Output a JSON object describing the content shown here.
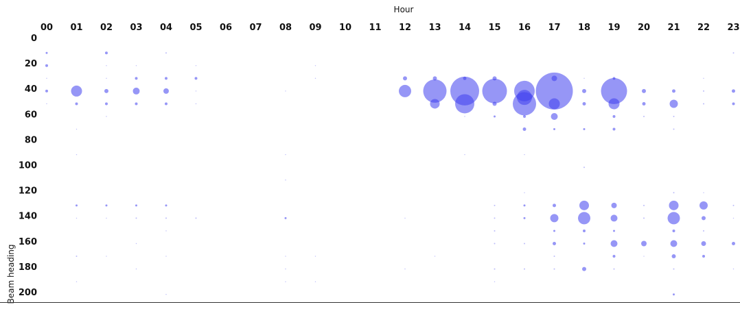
{
  "chart_data": {
    "type": "scatter",
    "subtype": "bubble",
    "title": "",
    "xlabel": "Hour",
    "ylabel": "Beam heading",
    "x_categories": [
      "00",
      "01",
      "02",
      "03",
      "04",
      "05",
      "06",
      "07",
      "08",
      "09",
      "10",
      "11",
      "12",
      "13",
      "14",
      "15",
      "16",
      "17",
      "18",
      "19",
      "20",
      "21",
      "22",
      "23"
    ],
    "y_ticks": [
      0,
      20,
      40,
      60,
      80,
      100,
      120,
      140,
      160,
      180,
      200
    ],
    "ylim": [
      0,
      200
    ],
    "y_inverted": true,
    "x_axis_position": "top",
    "grid": false,
    "legend": "none",
    "colors": {
      "bubble": "#4040ee",
      "text": "#111111",
      "axis": "#333333"
    },
    "points": [
      {
        "hour": "00",
        "heading": 12,
        "size": 3
      },
      {
        "hour": "00",
        "heading": 22,
        "size": 4
      },
      {
        "hour": "00",
        "heading": 32,
        "size": 1
      },
      {
        "hour": "00",
        "heading": 42,
        "size": 4
      },
      {
        "hour": "00",
        "heading": 52,
        "size": 1
      },
      {
        "hour": "01",
        "heading": 42,
        "size": 16
      },
      {
        "hour": "01",
        "heading": 52,
        "size": 4
      },
      {
        "hour": "01",
        "heading": 72,
        "size": 1
      },
      {
        "hour": "01",
        "heading": 92,
        "size": 1
      },
      {
        "hour": "01",
        "heading": 132,
        "size": 3
      },
      {
        "hour": "01",
        "heading": 142,
        "size": 1
      },
      {
        "hour": "01",
        "heading": 172,
        "size": 2
      },
      {
        "hour": "01",
        "heading": 192,
        "size": 1
      },
      {
        "hour": "02",
        "heading": 12,
        "size": 4
      },
      {
        "hour": "02",
        "heading": 22,
        "size": 1
      },
      {
        "hour": "02",
        "heading": 32,
        "size": 1
      },
      {
        "hour": "02",
        "heading": 42,
        "size": 6
      },
      {
        "hour": "02",
        "heading": 52,
        "size": 4
      },
      {
        "hour": "02",
        "heading": 62,
        "size": 1
      },
      {
        "hour": "02",
        "heading": 132,
        "size": 3
      },
      {
        "hour": "02",
        "heading": 142,
        "size": 1
      },
      {
        "hour": "02",
        "heading": 172,
        "size": 1
      },
      {
        "hour": "03",
        "heading": 22,
        "size": 1
      },
      {
        "hour": "03",
        "heading": 32,
        "size": 4
      },
      {
        "hour": "03",
        "heading": 42,
        "size": 10
      },
      {
        "hour": "03",
        "heading": 52,
        "size": 4
      },
      {
        "hour": "03",
        "heading": 132,
        "size": 3
      },
      {
        "hour": "03",
        "heading": 142,
        "size": 2
      },
      {
        "hour": "03",
        "heading": 162,
        "size": 1
      },
      {
        "hour": "03",
        "heading": 182,
        "size": 1
      },
      {
        "hour": "04",
        "heading": 12,
        "size": 2
      },
      {
        "hour": "04",
        "heading": 32,
        "size": 4
      },
      {
        "hour": "04",
        "heading": 42,
        "size": 8
      },
      {
        "hour": "04",
        "heading": 52,
        "size": 4
      },
      {
        "hour": "04",
        "heading": 132,
        "size": 3
      },
      {
        "hour": "04",
        "heading": 142,
        "size": 2
      },
      {
        "hour": "04",
        "heading": 152,
        "size": 1
      },
      {
        "hour": "04",
        "heading": 172,
        "size": 1
      },
      {
        "hour": "04",
        "heading": 202,
        "size": 1
      },
      {
        "hour": "05",
        "heading": 22,
        "size": 1
      },
      {
        "hour": "05",
        "heading": 32,
        "size": 4
      },
      {
        "hour": "05",
        "heading": 42,
        "size": 1
      },
      {
        "hour": "05",
        "heading": 52,
        "size": 1
      },
      {
        "hour": "05",
        "heading": 142,
        "size": 2
      },
      {
        "hour": "08",
        "heading": 42,
        "size": 1
      },
      {
        "hour": "08",
        "heading": 92,
        "size": 1
      },
      {
        "hour": "08",
        "heading": 112,
        "size": 1
      },
      {
        "hour": "08",
        "heading": 142,
        "size": 3
      },
      {
        "hour": "08",
        "heading": 172,
        "size": 1
      },
      {
        "hour": "08",
        "heading": 182,
        "size": 1
      },
      {
        "hour": "08",
        "heading": 192,
        "size": 1
      },
      {
        "hour": "09",
        "heading": 22,
        "size": 1
      },
      {
        "hour": "09",
        "heading": 32,
        "size": 1
      },
      {
        "hour": "09",
        "heading": 172,
        "size": 1
      },
      {
        "hour": "09",
        "heading": 192,
        "size": 1
      },
      {
        "hour": "12",
        "heading": 32,
        "size": 6
      },
      {
        "hour": "12",
        "heading": 42,
        "size": 18
      },
      {
        "hour": "12",
        "heading": 142,
        "size": 1
      },
      {
        "hour": "12",
        "heading": 182,
        "size": 1
      },
      {
        "hour": "13",
        "heading": 32,
        "size": 6
      },
      {
        "hour": "13",
        "heading": 42,
        "size": 34
      },
      {
        "hour": "13",
        "heading": 52,
        "size": 14
      },
      {
        "hour": "13",
        "heading": 172,
        "size": 1
      },
      {
        "hour": "14",
        "heading": 32,
        "size": 5
      },
      {
        "hour": "14",
        "heading": 42,
        "size": 42
      },
      {
        "hour": "14",
        "heading": 52,
        "size": 28
      },
      {
        "hour": "14",
        "heading": 62,
        "size": 1
      },
      {
        "hour": "14",
        "heading": 92,
        "size": 1
      },
      {
        "hour": "15",
        "heading": 32,
        "size": 6
      },
      {
        "hour": "15",
        "heading": 42,
        "size": 36
      },
      {
        "hour": "15",
        "heading": 52,
        "size": 6
      },
      {
        "hour": "15",
        "heading": 62,
        "size": 3
      },
      {
        "hour": "15",
        "heading": 132,
        "size": 2
      },
      {
        "hour": "15",
        "heading": 142,
        "size": 2
      },
      {
        "hour": "15",
        "heading": 152,
        "size": 2
      },
      {
        "hour": "15",
        "heading": 162,
        "size": 2
      },
      {
        "hour": "15",
        "heading": 182,
        "size": 2
      },
      {
        "hour": "15",
        "heading": 192,
        "size": 1
      },
      {
        "hour": "16",
        "heading": 42,
        "size": 30
      },
      {
        "hour": "16",
        "heading": 47,
        "size": 22
      },
      {
        "hour": "16",
        "heading": 52,
        "size": 34
      },
      {
        "hour": "16",
        "heading": 62,
        "size": 4
      },
      {
        "hour": "16",
        "heading": 72,
        "size": 5
      },
      {
        "hour": "16",
        "heading": 92,
        "size": 1
      },
      {
        "hour": "16",
        "heading": 122,
        "size": 1
      },
      {
        "hour": "16",
        "heading": 132,
        "size": 3
      },
      {
        "hour": "16",
        "heading": 142,
        "size": 3
      },
      {
        "hour": "16",
        "heading": 162,
        "size": 2
      },
      {
        "hour": "16",
        "heading": 182,
        "size": 2
      },
      {
        "hour": "17",
        "heading": 32,
        "size": 8
      },
      {
        "hour": "17",
        "heading": 42,
        "size": 54
      },
      {
        "hour": "17",
        "heading": 52,
        "size": 16
      },
      {
        "hour": "17",
        "heading": 62,
        "size": 10
      },
      {
        "hour": "17",
        "heading": 72,
        "size": 3
      },
      {
        "hour": "17",
        "heading": 132,
        "size": 5
      },
      {
        "hour": "17",
        "heading": 142,
        "size": 12
      },
      {
        "hour": "17",
        "heading": 152,
        "size": 3
      },
      {
        "hour": "17",
        "heading": 162,
        "size": 5
      },
      {
        "hour": "17",
        "heading": 172,
        "size": 2
      },
      {
        "hour": "17",
        "heading": 182,
        "size": 2
      },
      {
        "hour": "18",
        "heading": 32,
        "size": 1
      },
      {
        "hour": "18",
        "heading": 42,
        "size": 6
      },
      {
        "hour": "18",
        "heading": 52,
        "size": 5
      },
      {
        "hour": "18",
        "heading": 72,
        "size": 3
      },
      {
        "hour": "18",
        "heading": 102,
        "size": 2
      },
      {
        "hour": "18",
        "heading": 132,
        "size": 14
      },
      {
        "hour": "18",
        "heading": 142,
        "size": 18
      },
      {
        "hour": "18",
        "heading": 152,
        "size": 4
      },
      {
        "hour": "18",
        "heading": 162,
        "size": 3
      },
      {
        "hour": "18",
        "heading": 182,
        "size": 6
      },
      {
        "hour": "19",
        "heading": 32,
        "size": 4
      },
      {
        "hour": "19",
        "heading": 42,
        "size": 38
      },
      {
        "hour": "19",
        "heading": 52,
        "size": 16
      },
      {
        "hour": "19",
        "heading": 62,
        "size": 4
      },
      {
        "hour": "19",
        "heading": 72,
        "size": 4
      },
      {
        "hour": "19",
        "heading": 132,
        "size": 8
      },
      {
        "hour": "19",
        "heading": 142,
        "size": 10
      },
      {
        "hour": "19",
        "heading": 152,
        "size": 3
      },
      {
        "hour": "19",
        "heading": 162,
        "size": 10
      },
      {
        "hour": "19",
        "heading": 172,
        "size": 4
      },
      {
        "hour": "19",
        "heading": 182,
        "size": 2
      },
      {
        "hour": "20",
        "heading": 42,
        "size": 6
      },
      {
        "hour": "20",
        "heading": 52,
        "size": 5
      },
      {
        "hour": "20",
        "heading": 62,
        "size": 2
      },
      {
        "hour": "20",
        "heading": 132,
        "size": 2
      },
      {
        "hour": "20",
        "heading": 142,
        "size": 2
      },
      {
        "hour": "20",
        "heading": 162,
        "size": 8
      },
      {
        "hour": "20",
        "heading": 172,
        "size": 1
      },
      {
        "hour": "21",
        "heading": 42,
        "size": 5
      },
      {
        "hour": "21",
        "heading": 52,
        "size": 12
      },
      {
        "hour": "21",
        "heading": 62,
        "size": 2
      },
      {
        "hour": "21",
        "heading": 72,
        "size": 2
      },
      {
        "hour": "21",
        "heading": 122,
        "size": 2
      },
      {
        "hour": "21",
        "heading": 132,
        "size": 14
      },
      {
        "hour": "21",
        "heading": 142,
        "size": 18
      },
      {
        "hour": "21",
        "heading": 152,
        "size": 4
      },
      {
        "hour": "21",
        "heading": 162,
        "size": 10
      },
      {
        "hour": "21",
        "heading": 172,
        "size": 6
      },
      {
        "hour": "21",
        "heading": 182,
        "size": 2
      },
      {
        "hour": "21",
        "heading": 202,
        "size": 3
      },
      {
        "hour": "22",
        "heading": 32,
        "size": 1
      },
      {
        "hour": "22",
        "heading": 42,
        "size": 2
      },
      {
        "hour": "22",
        "heading": 52,
        "size": 2
      },
      {
        "hour": "22",
        "heading": 122,
        "size": 1
      },
      {
        "hour": "22",
        "heading": 132,
        "size": 12
      },
      {
        "hour": "22",
        "heading": 142,
        "size": 6
      },
      {
        "hour": "22",
        "heading": 152,
        "size": 2
      },
      {
        "hour": "22",
        "heading": 162,
        "size": 7
      },
      {
        "hour": "22",
        "heading": 172,
        "size": 4
      },
      {
        "hour": "23",
        "heading": 12,
        "size": 2
      },
      {
        "hour": "23",
        "heading": 42,
        "size": 5
      },
      {
        "hour": "23",
        "heading": 52,
        "size": 4
      },
      {
        "hour": "23",
        "heading": 132,
        "size": 2
      },
      {
        "hour": "23",
        "heading": 142,
        "size": 1
      },
      {
        "hour": "23",
        "heading": 162,
        "size": 5
      },
      {
        "hour": "23",
        "heading": 182,
        "size": 1
      }
    ]
  }
}
